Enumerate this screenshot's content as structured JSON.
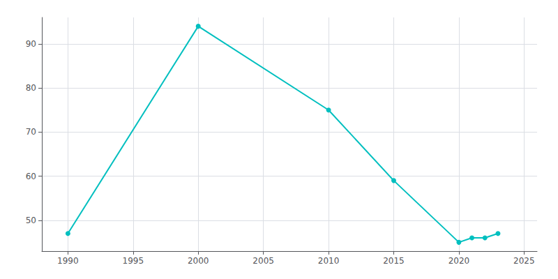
{
  "chart_data": {
    "type": "line",
    "x": [
      1990,
      2000,
      2010,
      2015,
      2020,
      2021,
      2022,
      2023
    ],
    "values": [
      47,
      94,
      75,
      59,
      45,
      46,
      46,
      47
    ],
    "color": "#00BFBF",
    "marker": "circle",
    "xlim": [
      1988,
      2026
    ],
    "ylim": [
      43,
      96
    ],
    "xticks": [
      1990,
      1995,
      2000,
      2005,
      2010,
      2015,
      2020,
      2025
    ],
    "yticks": [
      50,
      60,
      70,
      80,
      90
    ],
    "grid": true
  }
}
